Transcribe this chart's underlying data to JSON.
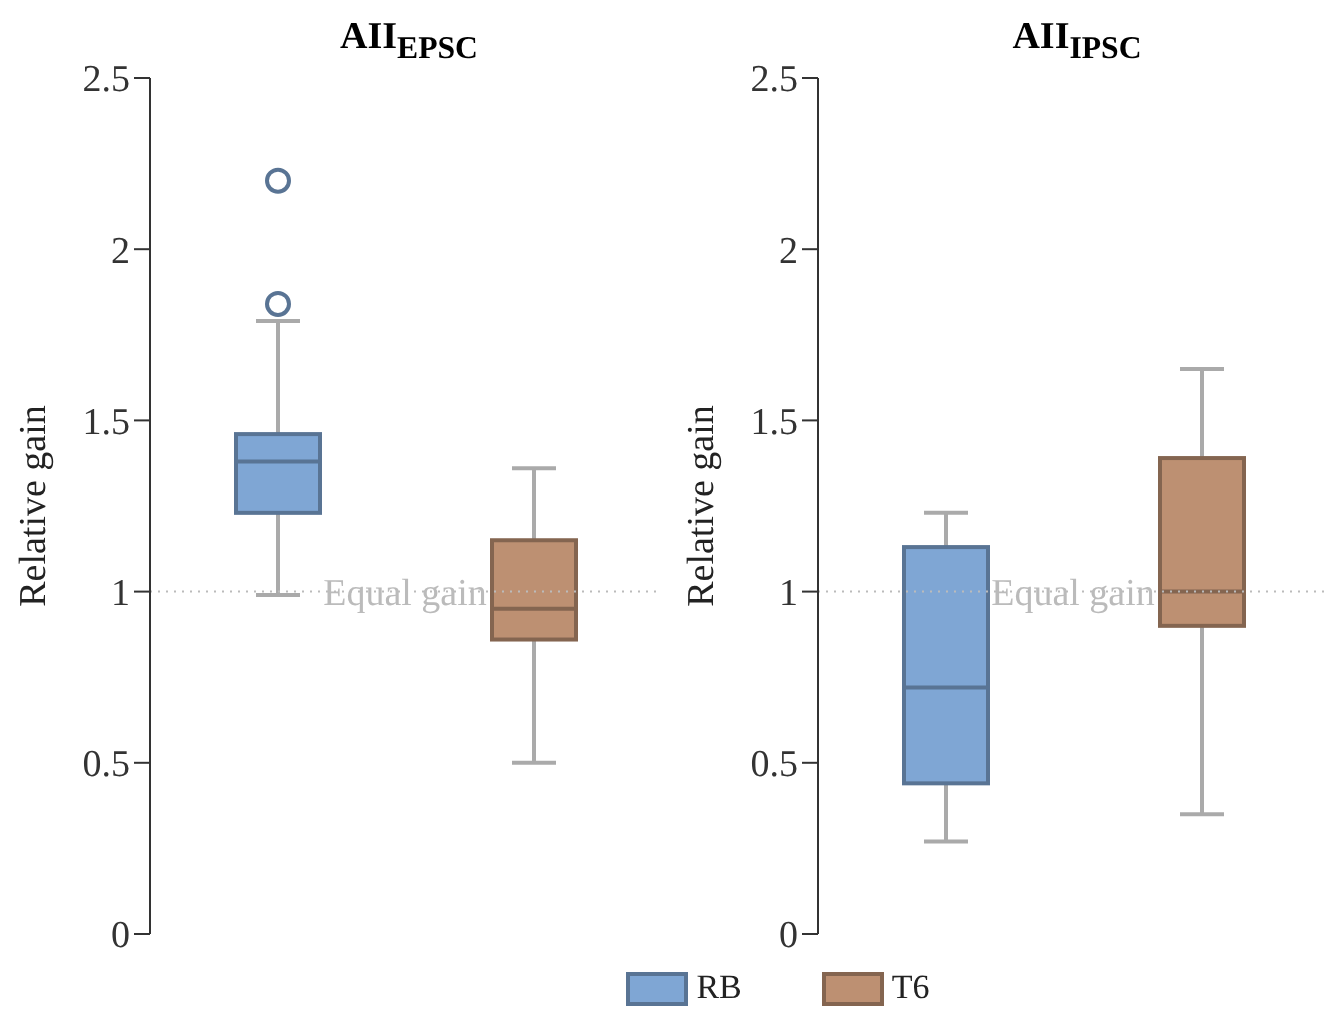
{
  "chart_data": [
    {
      "type": "box",
      "title": "AII$_{EPSC}$",
      "ylabel": "Relative gain",
      "categories": [
        null
      ],
      "ylim": [
        0,
        2.5
      ],
      "yticks": [
        0,
        0.5,
        1,
        1.5,
        2,
        2.5
      ],
      "grid": false,
      "legend": "bottom",
      "series": [
        {
          "name": "RB",
          "color": "#7fa6d4",
          "boxes": [
            {
              "low": 0.99,
              "q1": 1.23,
              "median": 1.38,
              "q3": 1.46,
              "high": 1.79,
              "outliers": [
                1.84,
                2.2
              ]
            }
          ]
        },
        {
          "name": "T6",
          "color": "#bd9072",
          "boxes": [
            {
              "low": 0.5,
              "q1": 0.86,
              "median": 0.95,
              "q3": 1.15,
              "high": 1.36
            }
          ]
        }
      ],
      "ref_lines": [
        {
          "axis": "y",
          "value": 1,
          "label": "Equal gain",
          "color": "#bbbbbb",
          "line_style": "dotted"
        }
      ]
    },
    {
      "type": "box",
      "title": "AII$_{IPSC}$",
      "ylabel": "Relative gain",
      "categories": [
        null
      ],
      "ylim": [
        0,
        2.5
      ],
      "yticks": [
        0,
        0.5,
        1,
        1.5,
        2,
        2.5
      ],
      "grid": false,
      "legend": "bottom",
      "series": [
        {
          "name": "RB",
          "color": "#7fa6d4",
          "boxes": [
            {
              "low": 0.27,
              "q1": 0.44,
              "median": 0.72,
              "q3": 1.13,
              "high": 1.23
            }
          ]
        },
        {
          "name": "T6",
          "color": "#bd9072",
          "boxes": [
            {
              "low": 0.35,
              "q1": 0.9,
              "median": 1.0,
              "q3": 1.39,
              "high": 1.65
            }
          ]
        }
      ],
      "ref_lines": [
        {
          "axis": "y",
          "value": 1,
          "label": "Equal gain",
          "color": "#bbbbbb",
          "line_style": "dotted"
        }
      ]
    }
  ]
}
